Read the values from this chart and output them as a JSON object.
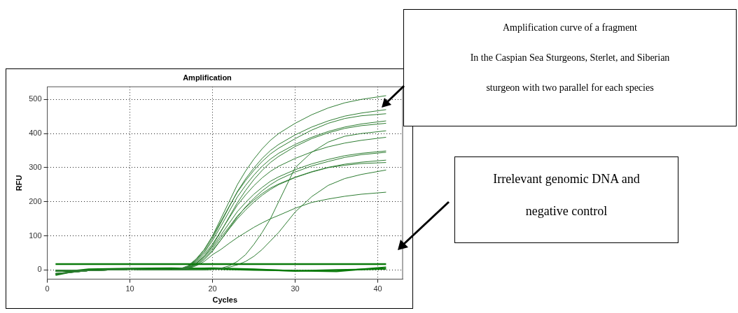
{
  "chart_data": {
    "type": "line",
    "title": "Amplification",
    "xlabel": "Cycles",
    "ylabel": "RFU",
    "x": [
      1,
      5,
      10,
      15,
      16,
      17,
      18,
      19,
      20,
      21,
      22,
      23,
      24,
      25,
      26,
      27,
      28,
      30,
      32,
      34,
      36,
      38,
      41
    ],
    "xlim": [
      0,
      43
    ],
    "xticks": [
      0,
      10,
      20,
      30,
      40
    ],
    "ylim": [
      -27,
      537
    ],
    "yticks": [
      0,
      100,
      200,
      300,
      400,
      500
    ],
    "grid": true,
    "legend": false,
    "marker": "none",
    "line_style": "solid",
    "series": [
      {
        "color": "#2e7d32",
        "values": [
          -12,
          -2,
          2,
          0,
          2,
          10,
          30,
          60,
          100,
          150,
          200,
          250,
          290,
          325,
          355,
          380,
          400,
          430,
          455,
          475,
          490,
          500,
          511
        ]
      },
      {
        "color": "#2e7d32",
        "values": [
          -10,
          -2,
          2,
          0,
          2,
          9,
          28,
          55,
          92,
          138,
          184,
          230,
          267,
          299,
          327,
          350,
          368,
          396,
          419,
          437,
          451,
          460,
          470
        ]
      },
      {
        "color": "#2e7d32",
        "values": [
          -3,
          -1,
          3,
          0,
          3,
          12,
          32,
          60,
          98,
          142,
          186,
          228,
          262,
          292,
          318,
          340,
          357,
          385,
          410,
          430,
          444,
          452,
          458
        ]
      },
      {
        "color": "#2e7d32",
        "values": [
          -11,
          -2,
          2,
          0,
          2,
          9,
          26,
          51,
          86,
          128,
          171,
          214,
          248,
          278,
          304,
          325,
          342,
          368,
          389,
          406,
          419,
          428,
          437
        ]
      },
      {
        "color": "#2e7d32",
        "values": [
          -1,
          -1,
          2,
          0,
          1,
          5,
          18,
          40,
          72,
          112,
          155,
          197,
          233,
          265,
          292,
          315,
          333,
          362,
          385,
          402,
          415,
          423,
          430
        ]
      },
      {
        "color": "#2e7d32",
        "values": [
          -12,
          -2,
          2,
          0,
          2,
          8,
          23,
          46,
          76,
          114,
          152,
          190,
          220,
          247,
          270,
          289,
          304,
          327,
          346,
          361,
          372,
          380,
          389
        ]
      },
      {
        "color": "#2e7d32",
        "values": [
          -10,
          -2,
          2,
          0,
          1,
          7,
          20,
          41,
          68,
          102,
          137,
          171,
          198,
          222,
          242,
          260,
          273,
          294,
          311,
          324,
          335,
          342,
          349
        ]
      },
      {
        "color": "#2e7d32",
        "values": [
          0,
          -1,
          2,
          0,
          1,
          4,
          14,
          30,
          55,
          88,
          122,
          155,
          185,
          210,
          232,
          250,
          265,
          287,
          305,
          318,
          330,
          338,
          345
        ]
      },
      {
        "color": "#2e7d32",
        "values": [
          -11,
          -2,
          2,
          0,
          1,
          6,
          19,
          38,
          63,
          95,
          126,
          158,
          183,
          205,
          224,
          240,
          252,
          272,
          288,
          301,
          310,
          316,
          322
        ]
      },
      {
        "color": "#2e7d32",
        "values": [
          -4,
          -1,
          2,
          0,
          1,
          5,
          16,
          34,
          58,
          88,
          120,
          150,
          176,
          199,
          219,
          236,
          250,
          271,
          287,
          300,
          307,
          312,
          315
        ]
      },
      {
        "color": "#2e7d32",
        "values": [
          -12,
          -2,
          2,
          0,
          0,
          0,
          0,
          0,
          2,
          5,
          12,
          25,
          45,
          75,
          110,
          150,
          200,
          300,
          345,
          375,
          392,
          400,
          408
        ]
      },
      {
        "color": "#2e7d32",
        "values": [
          -10,
          -2,
          2,
          0,
          0,
          0,
          0,
          0,
          1,
          3,
          8,
          15,
          25,
          40,
          60,
          85,
          110,
          170,
          215,
          248,
          268,
          280,
          293
        ]
      },
      {
        "color": "#2e7d32",
        "values": [
          -11,
          -2,
          2,
          0,
          1,
          4,
          12,
          25,
          45,
          60,
          78,
          95,
          110,
          125,
          138,
          150,
          160,
          181,
          198,
          208,
          216,
          222,
          228
        ]
      },
      {
        "color": "#0b7a0b",
        "x": [
          1,
          3,
          5,
          10,
          15,
          20,
          25,
          30,
          35,
          41
        ],
        "values": [
          -15,
          -5,
          0,
          2,
          3,
          5,
          2,
          -3,
          0,
          3
        ]
      },
      {
        "color": "#0b7a0b",
        "x": [
          1,
          3,
          5,
          10,
          15,
          20,
          25,
          30,
          35,
          41
        ],
        "values": [
          -3,
          -3,
          2,
          4,
          5,
          3,
          0,
          -2,
          -4,
          8
        ]
      }
    ],
    "ref_lines": [
      {
        "axis": "y",
        "value": 17,
        "color": "#0b7a0b"
      }
    ],
    "annotations": [
      "Amplification curve of a fragment\nIn the Caspian Sea Sturgeons, Sterlet, and Siberian\nsturgeon with two parallel for each species",
      "Irrelevant genomic DNA and\nnegative control"
    ]
  }
}
